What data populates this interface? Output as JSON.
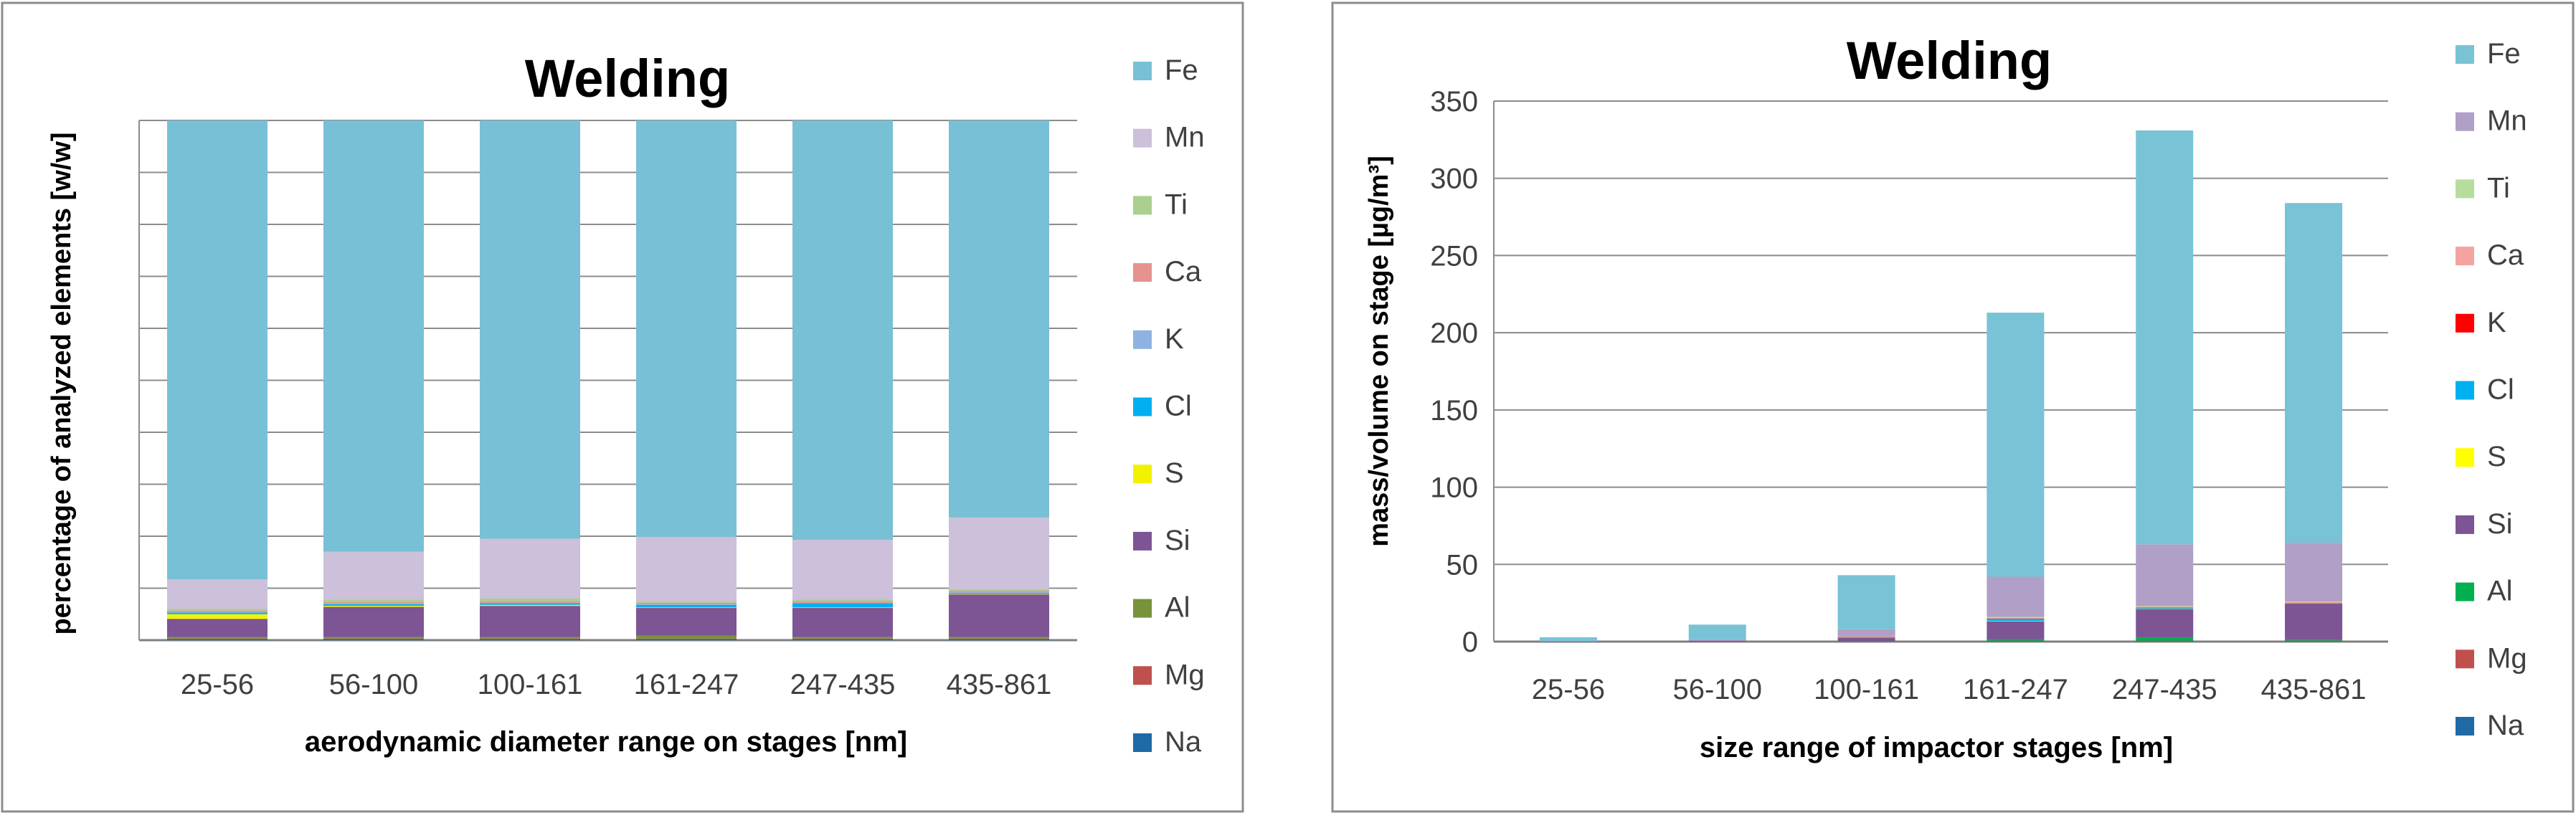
{
  "chart_data": [
    {
      "type": "bar",
      "stacked": true,
      "normalized": true,
      "title": "Welding",
      "xlabel": "aerodynamic diameter range on stages [nm]",
      "ylabel": "percentage of analyzed elements [w/w]",
      "categories": [
        "25-56",
        "56-100",
        "100-161",
        "161-247",
        "247-435",
        "435-861"
      ],
      "ylim": [
        0,
        100
      ],
      "grid": true,
      "y_tick_labels_shown": false,
      "legend": "right",
      "series": [
        {
          "name": "Na",
          "color": "#1f6aa5",
          "values": [
            0.2,
            0.2,
            0.2,
            0.2,
            0.2,
            0.2
          ]
        },
        {
          "name": "Mg",
          "color": "#c0504d",
          "values": [
            0.1,
            0.1,
            0.1,
            0.1,
            0.1,
            0.1
          ]
        },
        {
          "name": "Al",
          "color": "#77933c",
          "values": [
            0.3,
            0.3,
            0.3,
            0.6,
            0.3,
            0.3
          ]
        },
        {
          "name": "Si",
          "color": "#7d5494",
          "values": [
            3.5,
            5.8,
            6.0,
            5.3,
            5.6,
            8.2
          ]
        },
        {
          "name": "S",
          "color": "#f2f200",
          "values": [
            0.9,
            0.2,
            0.2,
            0.1,
            0.1,
            0.1
          ]
        },
        {
          "name": "Cl",
          "color": "#00b0f0",
          "values": [
            0.3,
            0.3,
            0.3,
            0.5,
            0.8,
            0.2
          ]
        },
        {
          "name": "K",
          "color": "#8db3e2",
          "values": [
            0.1,
            0.1,
            0.1,
            0.1,
            0.1,
            0.1
          ]
        },
        {
          "name": "Ca",
          "color": "#e6928e",
          "values": [
            0.3,
            0.3,
            0.3,
            0.3,
            0.3,
            0.3
          ]
        },
        {
          "name": "Ti",
          "color": "#a9d08e",
          "values": [
            0.3,
            0.5,
            0.5,
            0.3,
            0.3,
            0.3
          ]
        },
        {
          "name": "Mn",
          "color": "#ccc0da",
          "values": [
            5.7,
            9.2,
            11.5,
            12.4,
            11.5,
            13.8
          ]
        },
        {
          "name": "Fe",
          "color": "#78c0d6",
          "values": [
            88.3,
            83.0,
            80.5,
            80.1,
            80.7,
            76.4
          ]
        }
      ]
    },
    {
      "type": "bar",
      "stacked": true,
      "title": "Welding",
      "xlabel": "size range of impactor stages [nm]",
      "ylabel": "mass/volume on stage  [µg/m³]",
      "categories": [
        "25-56",
        "56-100",
        "100-161",
        "161-247",
        "247-435",
        "435-861"
      ],
      "ylim": [
        0,
        350
      ],
      "yticks": [
        0,
        50,
        100,
        150,
        200,
        250,
        300,
        350
      ],
      "grid": true,
      "legend": "right",
      "series": [
        {
          "name": "Na",
          "color": "#1f6aa5",
          "values": [
            0,
            0,
            0,
            0.3,
            0.3,
            0.3
          ]
        },
        {
          "name": "Mg",
          "color": "#c0504d",
          "values": [
            0,
            0,
            0,
            0.3,
            0.3,
            0.3
          ]
        },
        {
          "name": "Al",
          "color": "#00b050",
          "values": [
            0,
            0,
            0.2,
            1.0,
            2.0,
            0.5
          ]
        },
        {
          "name": "Si",
          "color": "#7d5494",
          "values": [
            0.1,
            0.5,
            2.5,
            11.5,
            18.5,
            23.5
          ]
        },
        {
          "name": "S",
          "color": "#ffff00",
          "values": [
            0,
            0,
            0.1,
            0.2,
            0.2,
            0.2
          ]
        },
        {
          "name": "Cl",
          "color": "#00b0f0",
          "values": [
            0,
            0,
            0.2,
            1.5,
            0.5,
            0.2
          ]
        },
        {
          "name": "K",
          "color": "#ff0000",
          "values": [
            0,
            0,
            0.1,
            0.2,
            0.2,
            0.2
          ]
        },
        {
          "name": "Ca",
          "color": "#f4a3a0",
          "values": [
            0,
            0,
            0.2,
            0.5,
            0.5,
            0.3
          ]
        },
        {
          "name": "Ti",
          "color": "#b7dd9d",
          "values": [
            0,
            0,
            0.2,
            0.5,
            0.5,
            0.5
          ]
        },
        {
          "name": "Mn",
          "color": "#b09fc6",
          "values": [
            0.2,
            1.0,
            4.5,
            26.0,
            40.0,
            38.0
          ]
        },
        {
          "name": "Fe",
          "color": "#78c3d6",
          "values": [
            2.5,
            9.5,
            35.0,
            171.0,
            268.0,
            220.0
          ]
        }
      ]
    }
  ]
}
